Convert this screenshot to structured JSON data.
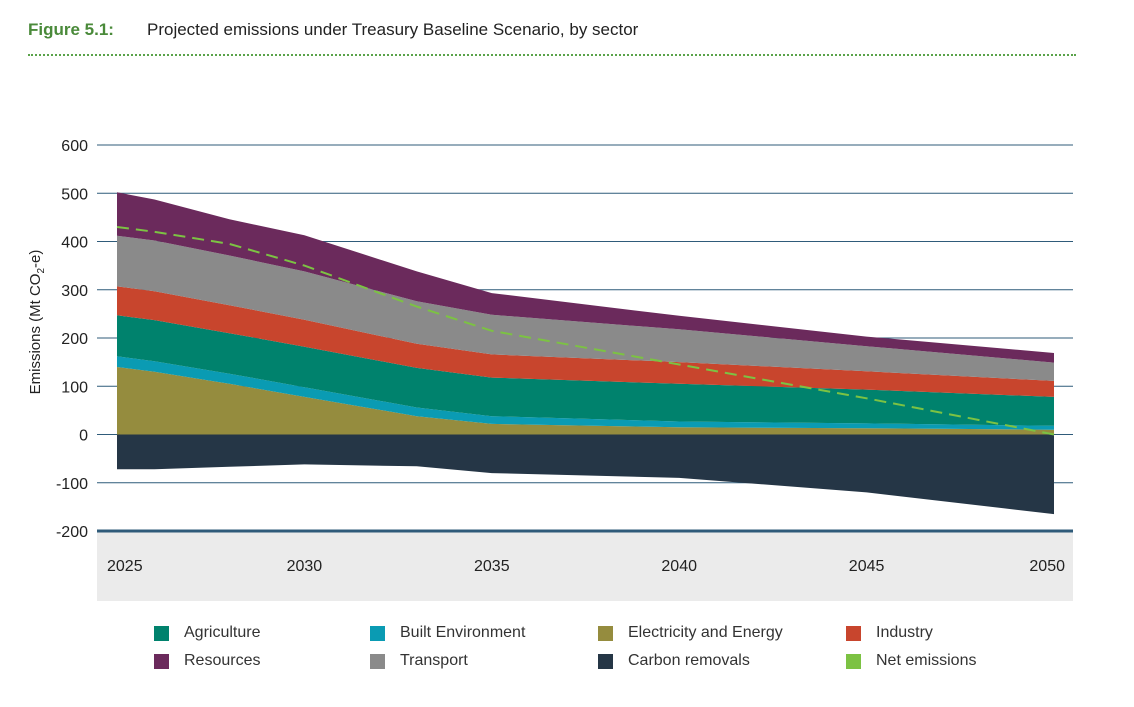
{
  "figure": {
    "label": "Figure 5.1:",
    "title": "Projected emissions under Treasury Baseline Scenario, by sector"
  },
  "chart_data": {
    "type": "area",
    "title": "Projected emissions under Treasury Baseline Scenario, by sector",
    "ylabel_prefix": "Emissions (Mt CO",
    "ylabel_subscript": "2",
    "ylabel_suffix": "-e)",
    "xlabel": "",
    "ylim": [
      -200,
      600
    ],
    "yticks": [
      600,
      500,
      400,
      300,
      200,
      100,
      0,
      -100,
      -200
    ],
    "ytick_labels": [
      "600",
      "500",
      "400",
      "300",
      "200",
      "100",
      "0",
      "-100",
      "-200"
    ],
    "xlim": [
      2025,
      2050
    ],
    "xticks": [
      2025,
      2030,
      2035,
      2040,
      2045,
      2050
    ],
    "xtick_labels": [
      "2025",
      "2030",
      "2035",
      "2040",
      "2045",
      "2050"
    ],
    "grid": true,
    "legend_position": "bottom",
    "x": [
      2025,
      2026,
      2028,
      2030,
      2033,
      2035,
      2040,
      2045,
      2050
    ],
    "stacking_order": [
      "Electricity and Energy",
      "Built Environment",
      "Agriculture",
      "Industry",
      "Transport",
      "Resources"
    ],
    "series": [
      {
        "name": "Agriculture",
        "color": "#00826d",
        "values": [
          85,
          85,
          84,
          84,
          82,
          80,
          78,
          70,
          60
        ]
      },
      {
        "name": "Built Environment",
        "color": "#0a9bb3",
        "values": [
          22,
          22,
          21,
          20,
          18,
          16,
          12,
          10,
          8
        ]
      },
      {
        "name": "Electricity and Energy",
        "color": "#958c3e",
        "values": [
          140,
          130,
          105,
          78,
          38,
          22,
          15,
          13,
          10
        ]
      },
      {
        "name": "Industry",
        "color": "#c8452d",
        "values": [
          60,
          60,
          58,
          56,
          50,
          48,
          45,
          38,
          33
        ]
      },
      {
        "name": "Transport",
        "color": "#8a8a8a",
        "values": [
          105,
          105,
          103,
          100,
          88,
          82,
          68,
          52,
          38
        ]
      },
      {
        "name": "Resources",
        "color": "#6b2a5c",
        "values": [
          90,
          85,
          75,
          75,
          62,
          45,
          28,
          20,
          20
        ]
      },
      {
        "name": "Carbon removals",
        "color": "#253646",
        "values": [
          -72,
          -72,
          -67,
          -62,
          -66,
          -80,
          -90,
          -120,
          -165
        ]
      },
      {
        "name": "Net emissions",
        "color": "#7cc243",
        "type": "line",
        "values": [
          430,
          420,
          395,
          350,
          265,
          215,
          145,
          75,
          0
        ]
      }
    ],
    "legend": [
      {
        "name": "Agriculture",
        "color": "#00826d"
      },
      {
        "name": "Built Environment",
        "color": "#0a9bb3"
      },
      {
        "name": "Electricity and Energy",
        "color": "#958c3e"
      },
      {
        "name": "Industry",
        "color": "#c8452d"
      },
      {
        "name": "Resources",
        "color": "#6b2a5c"
      },
      {
        "name": "Transport",
        "color": "#8a8a8a"
      },
      {
        "name": "Carbon removals",
        "color": "#253646"
      },
      {
        "name": "Net emissions",
        "color": "#7cc243"
      }
    ],
    "colors": {
      "gridline": "#2f5b7a",
      "axis_band": "#ebebeb",
      "header_accent": "#4a8a3a"
    }
  }
}
